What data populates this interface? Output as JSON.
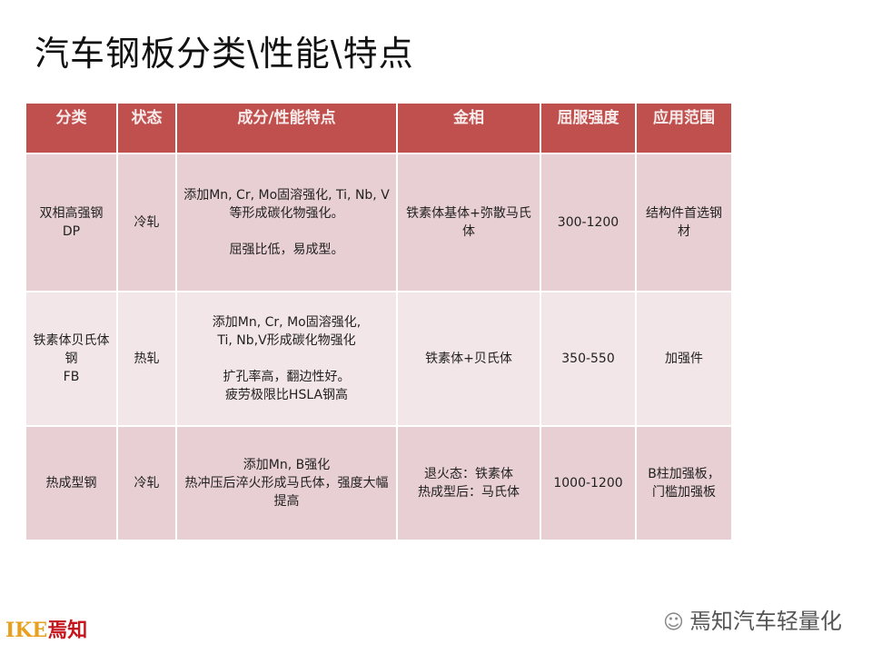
{
  "title": "汽车钢板分类\\性能\\特点",
  "table": {
    "headers": [
      "分类",
      "状态",
      "成分/性能特点",
      "金相",
      "屈服强度",
      "应用范围"
    ],
    "rows": [
      [
        "双相高强钢\nDP",
        "冷轧",
        "添加Mn, Cr, Mo固溶强化, Ti, Nb, V等形成碳化物强化。\n\n屈强比低，易成型。",
        "铁素体基体+弥散马氏体",
        "300-1200",
        "结构件首选钢材"
      ],
      [
        "铁素体贝氏体钢\nFB",
        "热轧",
        "添加Mn, Cr, Mo固溶强化,\nTi, Nb,V形成碳化物强化\n\n扩孔率高，翻边性好。\n疲劳极限比HSLA钢高",
        "铁素体+贝氏体",
        "350-550",
        "加强件"
      ],
      [
        "热成型钢",
        "冷轧",
        "添加Mn, B强化\n热冲压后淬火形成马氏体，强度大幅提高",
        "退火态：铁素体\n热成型后：马氏体",
        "1000-1200",
        "B柱加强板，\n门槛加强板"
      ]
    ]
  },
  "footer": {
    "logo_text": "IKE焉知",
    "logo_latin": "IKE",
    "logo_cjk": "焉知",
    "watermark": "焉知汽车轻量化",
    "watermark_icon": "wechat-icon"
  },
  "colors": {
    "header": "#c0504d",
    "row_dark": "#e8cfd3",
    "row_light": "#f3e6e8"
  }
}
